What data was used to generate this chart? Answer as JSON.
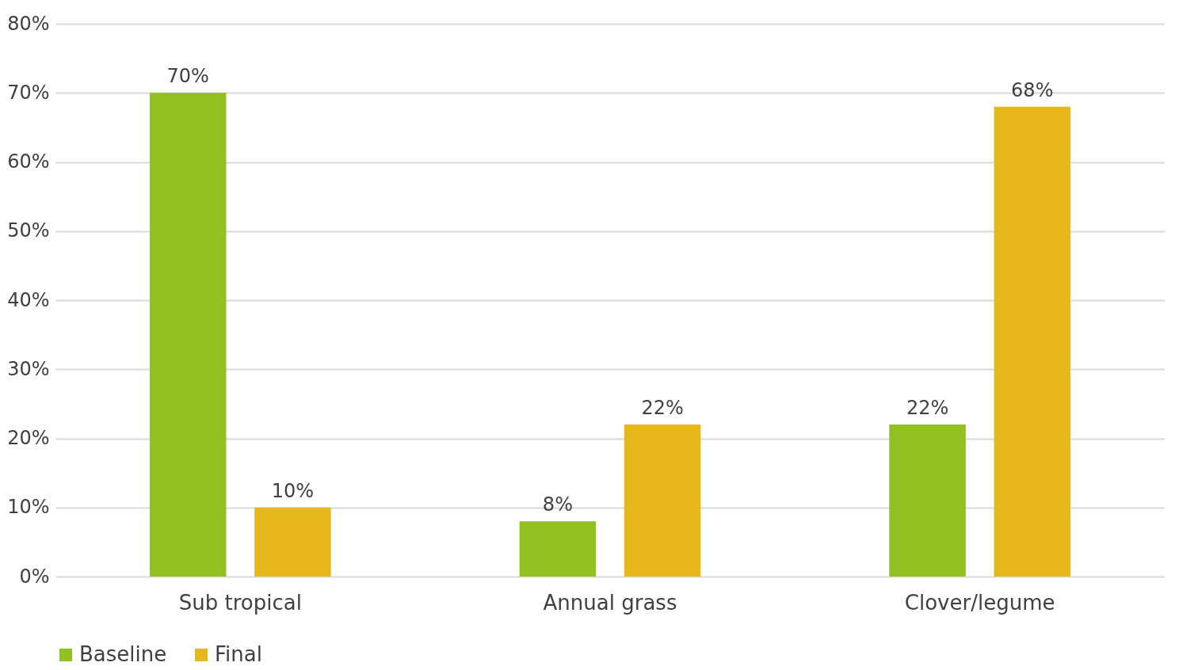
{
  "chart_data": {
    "type": "bar",
    "categories": [
      "Sub tropical",
      "Annual grass",
      "Clover/legume"
    ],
    "series": [
      {
        "name": "Baseline",
        "color": "#92c023",
        "values": [
          70,
          8,
          22
        ],
        "value_labels": [
          "70%",
          "8%",
          "22%"
        ]
      },
      {
        "name": "Final",
        "color": "#e6b81e",
        "values": [
          10,
          22,
          68
        ],
        "value_labels": [
          "10%",
          "22%",
          "68%"
        ]
      }
    ],
    "ylim": [
      0,
      80
    ],
    "yticks": [
      {
        "value": 0,
        "label": "0%"
      },
      {
        "value": 10,
        "label": "10%"
      },
      {
        "value": 20,
        "label": "20%"
      },
      {
        "value": 30,
        "label": "30%"
      },
      {
        "value": 40,
        "label": "40%"
      },
      {
        "value": 50,
        "label": "50%"
      },
      {
        "value": 60,
        "label": "60%"
      },
      {
        "value": 70,
        "label": "70%"
      },
      {
        "value": 80,
        "label": "80%"
      }
    ],
    "grid": "y",
    "legend": "bottom"
  }
}
